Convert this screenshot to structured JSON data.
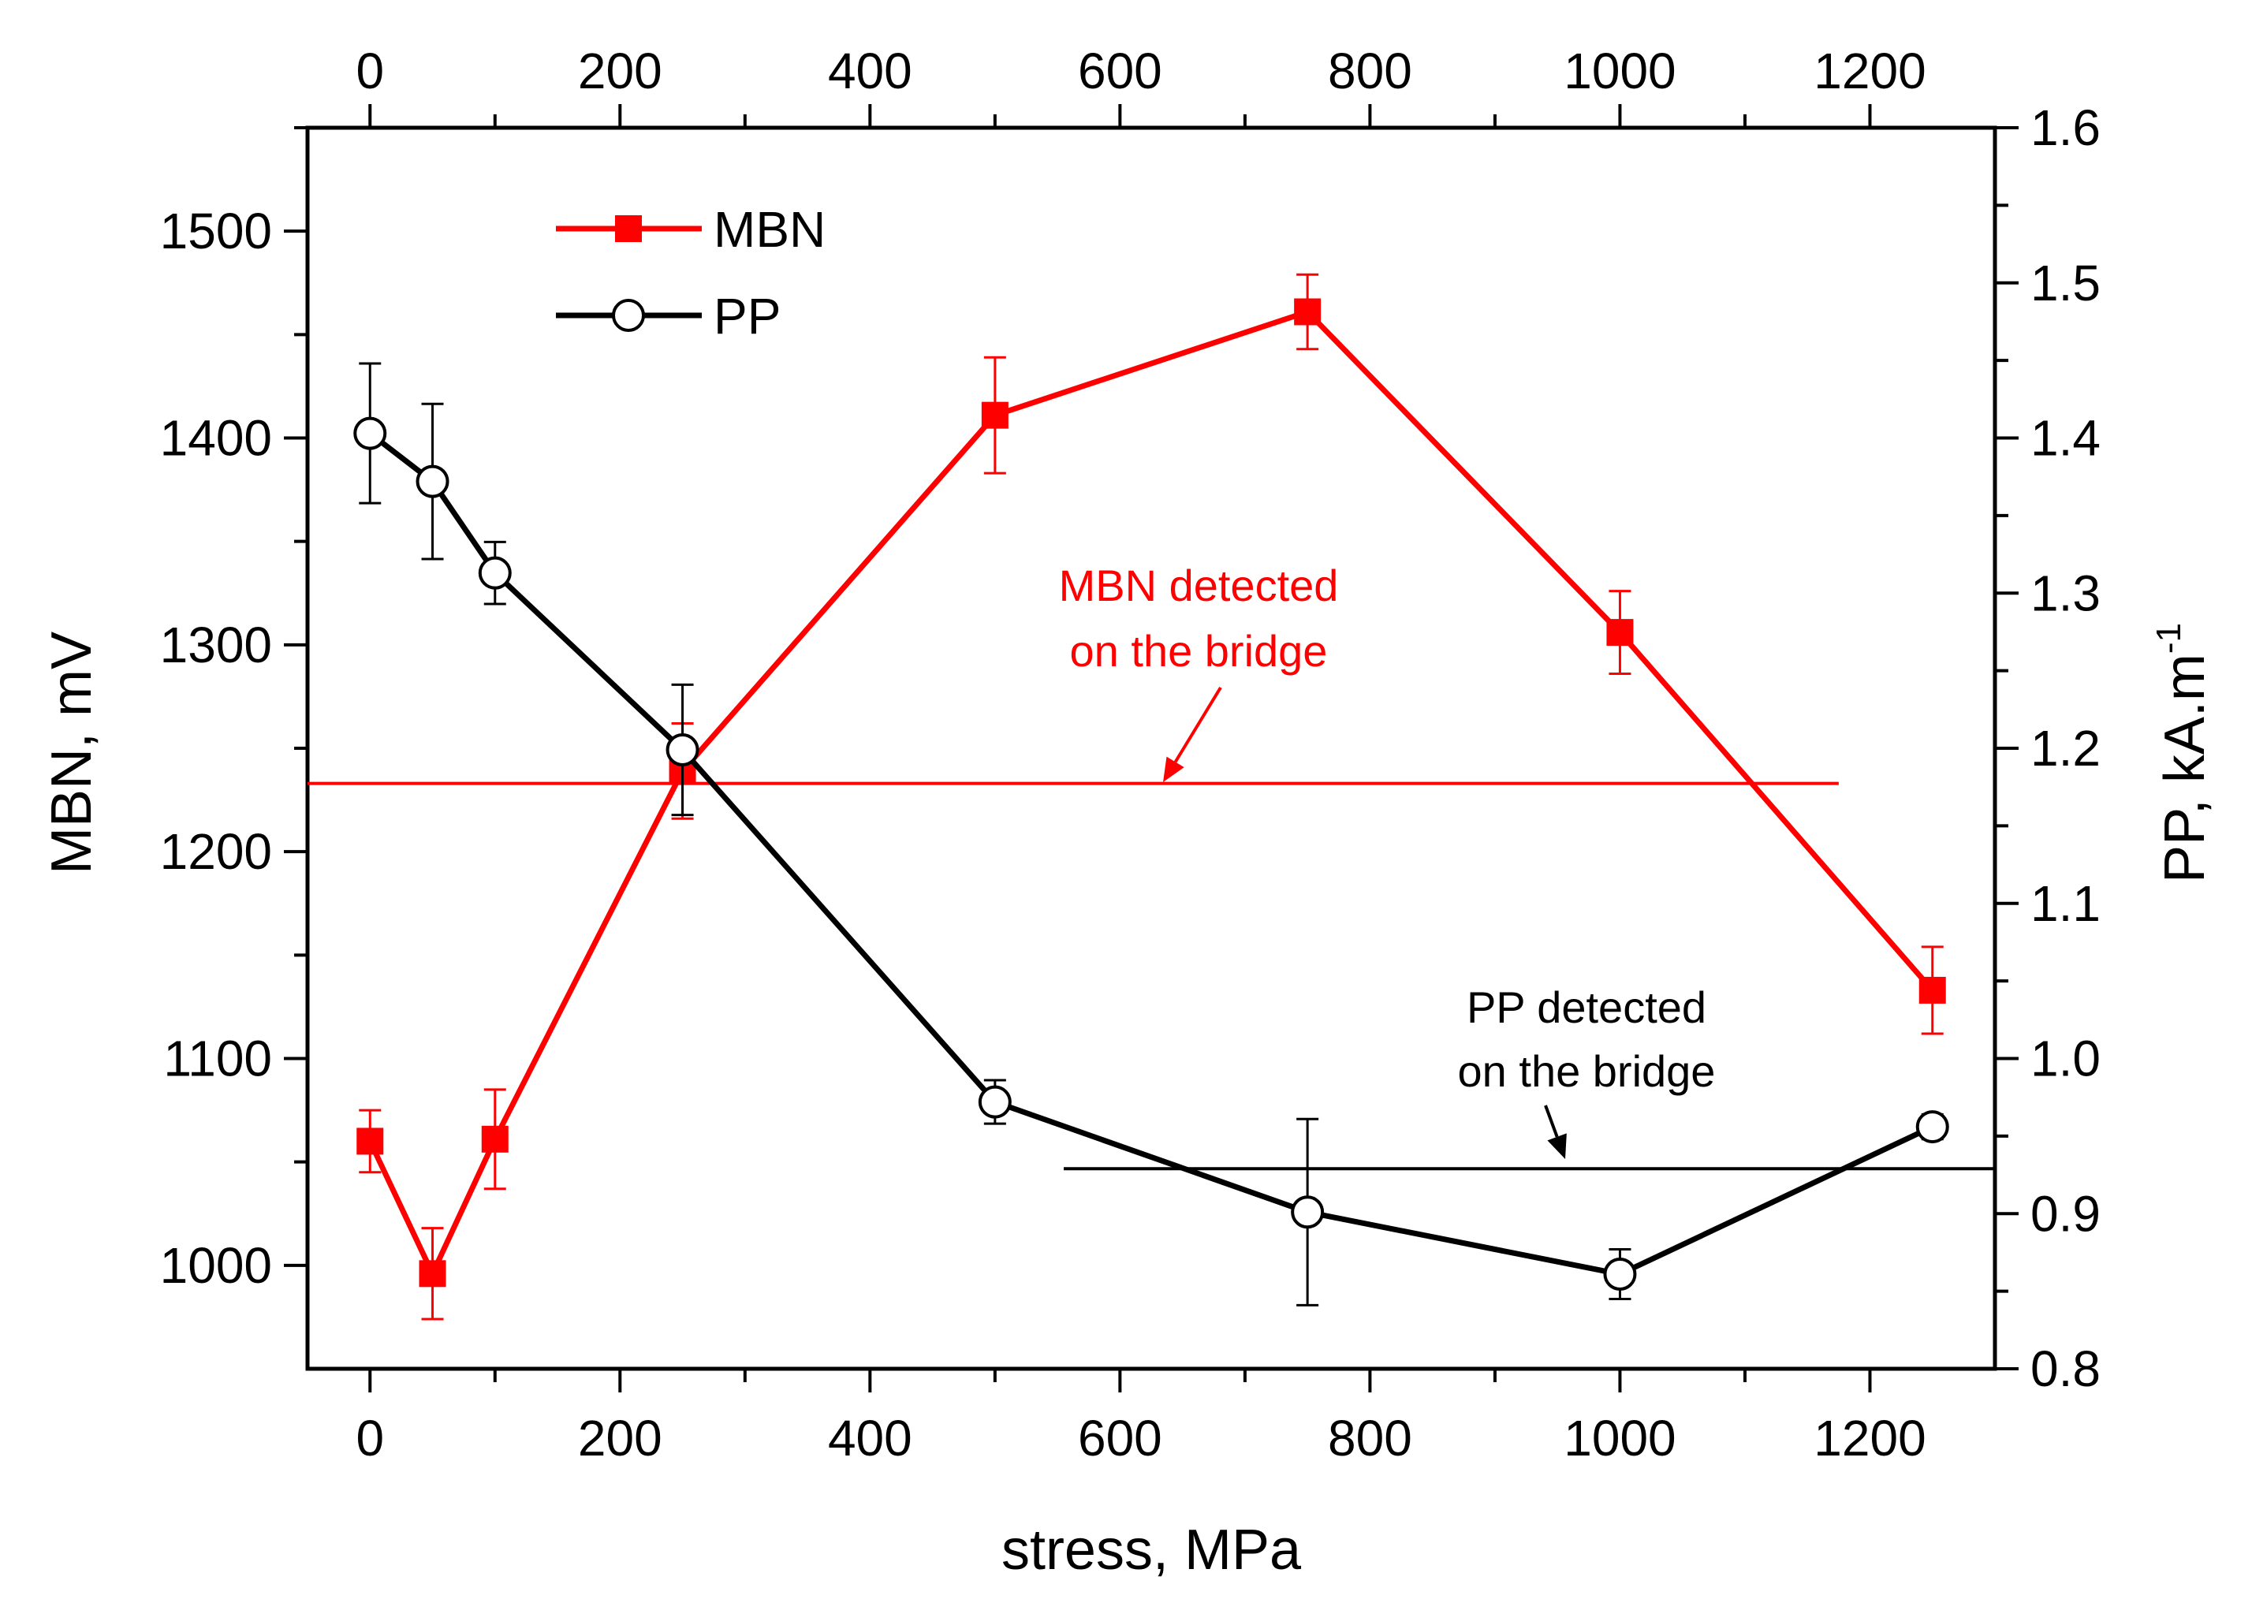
{
  "chart_data": {
    "type": "line",
    "title": "",
    "xlabel": "stress, MPa",
    "ylabel_left": "MBN, mV",
    "ylabel_right": "PP, kA.m",
    "ylabel_right_sup": "-1",
    "xlim": [
      -50,
      1300
    ],
    "ylim_left": [
      950,
      1550
    ],
    "ylim_right": [
      0.8,
      1.6
    ],
    "grid": false,
    "legend_placement": "top-left",
    "x_ticks": [
      0,
      200,
      400,
      600,
      800,
      1000,
      1200
    ],
    "y_left_ticks": [
      1000,
      1100,
      1200,
      1300,
      1400,
      1500
    ],
    "y_right_ticks": [
      "0.8",
      "0.9",
      "1.0",
      "1.1",
      "1.2",
      "1.3",
      "1.4",
      "1.5",
      "1.6"
    ],
    "series": [
      {
        "name": "MBN",
        "axis": "left",
        "color": "#ff0000",
        "marker": "filled-square",
        "x": [
          0,
          50,
          100,
          250,
          500,
          750,
          1000,
          1250
        ],
        "y": [
          1060,
          996,
          1061,
          1239,
          1411,
          1461,
          1306,
          1133
        ],
        "err": [
          15,
          22,
          24,
          23,
          28,
          18,
          20,
          21
        ]
      },
      {
        "name": "PP",
        "axis": "right",
        "color": "#000000",
        "marker": "open-circle",
        "x": [
          0,
          50,
          100,
          250,
          500,
          750,
          1000,
          1250
        ],
        "y": [
          1.403,
          1.372,
          1.313,
          1.199,
          0.972,
          0.901,
          0.861,
          0.956
        ],
        "err": [
          0.045,
          0.05,
          0.02,
          0.042,
          0.014,
          0.06,
          0.016,
          0.008
        ]
      }
    ],
    "reference_lines": [
      {
        "label": "MBN detected on the bridge",
        "label_lines": [
          "MBN detected",
          "on the bridge"
        ],
        "axis": "left",
        "y": 1233,
        "x_range": [
          -50,
          1175
        ],
        "color": "#ff0000"
      },
      {
        "label": "PP detected on the bridge",
        "label_lines": [
          "PP detected",
          "on the bridge"
        ],
        "axis": "right",
        "y": 0.929,
        "x_range": [
          555,
          1300
        ],
        "color": "#000000"
      }
    ]
  }
}
